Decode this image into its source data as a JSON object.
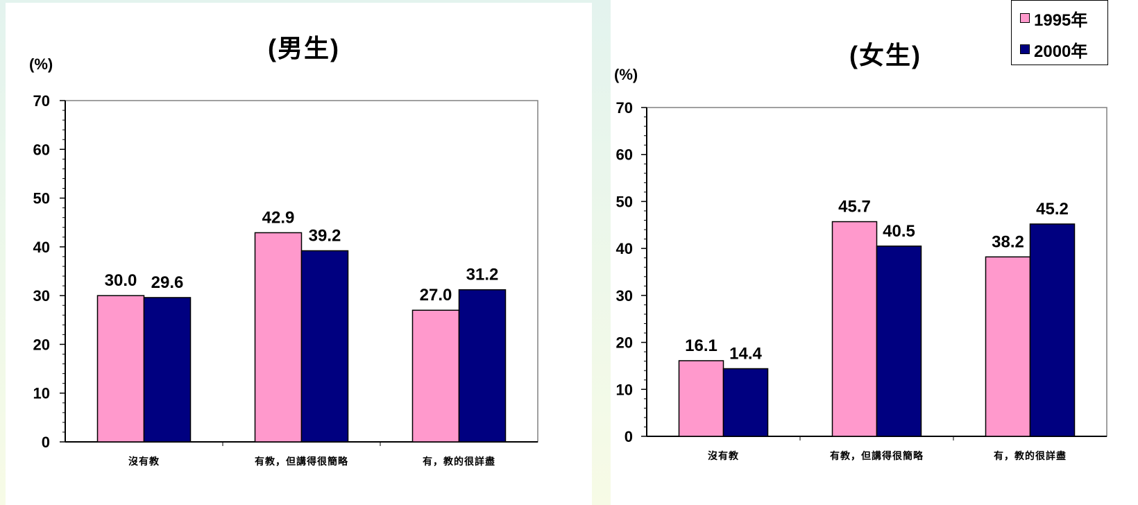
{
  "colors": {
    "s1995": "#ff99cc",
    "s2000": "#000080"
  },
  "legend": {
    "items": [
      {
        "label": "1995年"
      },
      {
        "label": "2000年"
      }
    ]
  },
  "chart_data": [
    {
      "type": "bar",
      "title": "(男生)",
      "ylabel": "(%)",
      "ylim": [
        0,
        70
      ],
      "yticks": [
        0,
        10,
        20,
        30,
        40,
        50,
        60,
        70
      ],
      "categories": [
        "沒有教",
        "有教，但講得很簡略",
        "有，教的很詳盡"
      ],
      "series": [
        {
          "name": "1995年",
          "values": [
            30.0,
            42.9,
            27.0
          ],
          "labels": [
            "30.0",
            "42.9",
            "27.0"
          ]
        },
        {
          "name": "2000年",
          "values": [
            29.6,
            39.2,
            31.2
          ],
          "labels": [
            "29.6",
            "39.2",
            "31.2"
          ]
        }
      ],
      "legend": "top-right",
      "grid": false
    },
    {
      "type": "bar",
      "title": "(女生)",
      "ylabel": "(%)",
      "ylim": [
        0,
        70
      ],
      "yticks": [
        0,
        10,
        20,
        30,
        40,
        50,
        60,
        70
      ],
      "categories": [
        "沒有教",
        "有教，但講得很簡略",
        "有，教的很詳盡"
      ],
      "series": [
        {
          "name": "1995年",
          "values": [
            16.1,
            45.7,
            38.2
          ],
          "labels": [
            "16.1",
            "45.7",
            "38.2"
          ]
        },
        {
          "name": "2000年",
          "values": [
            14.4,
            40.5,
            45.2
          ],
          "labels": [
            "14.4",
            "40.5",
            "45.2"
          ]
        }
      ],
      "legend": "top-right",
      "grid": false
    }
  ]
}
